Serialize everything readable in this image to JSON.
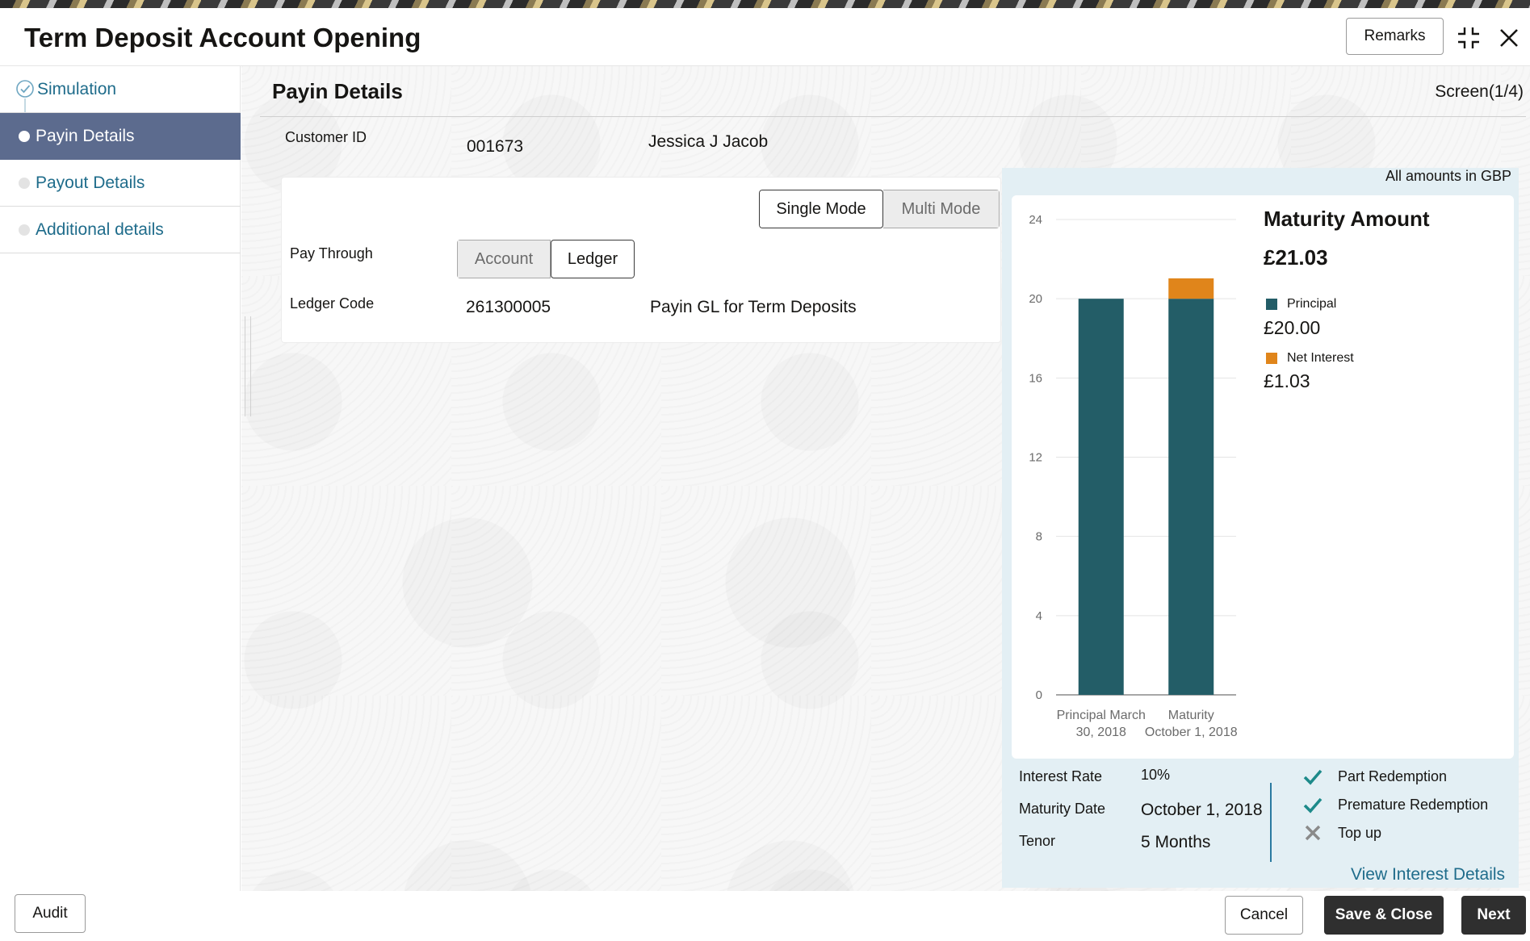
{
  "header": {
    "title": "Term Deposit Account Opening",
    "remarks_label": "Remarks"
  },
  "sidebar": {
    "items": [
      {
        "label": "Simulation",
        "state": "completed"
      },
      {
        "label": "Payin Details",
        "state": "active"
      },
      {
        "label": "Payout Details",
        "state": "pending"
      },
      {
        "label": "Additional details",
        "state": "pending"
      }
    ]
  },
  "main": {
    "section_title": "Payin Details",
    "screen_counter": "Screen(1/4)",
    "customer": {
      "label": "Customer ID",
      "id": "001673",
      "name": "Jessica J Jacob"
    },
    "mode": {
      "options": [
        "Single Mode",
        "Multi Mode"
      ],
      "selected": "Single Mode"
    },
    "pay_through": {
      "label": "Pay Through",
      "options": [
        "Account",
        "Ledger"
      ],
      "selected": "Ledger"
    },
    "ledger": {
      "label": "Ledger Code",
      "code": "261300005",
      "description": "Payin GL for Term Deposits"
    }
  },
  "summary": {
    "currency_note": "All amounts in GBP",
    "maturity_title": "Maturity Amount",
    "maturity_amount": "£21.03",
    "legend": [
      {
        "label": "Principal",
        "value": "£20.00",
        "color": "#235d67"
      },
      {
        "label": "Net Interest",
        "value": "£1.03",
        "color": "#e0851b"
      }
    ],
    "details": [
      {
        "label": "Interest Rate",
        "value": "10%"
      },
      {
        "label": "Maturity Date",
        "value": "October 1, 2018"
      },
      {
        "label": "Tenor",
        "value": "5 Months"
      }
    ],
    "features": [
      {
        "label": "Part Redemption",
        "enabled": true
      },
      {
        "label": "Premature Redemption",
        "enabled": true
      },
      {
        "label": "Top up",
        "enabled": false
      }
    ],
    "link_label": "View Interest Details"
  },
  "chart_data": {
    "type": "bar",
    "stacked": true,
    "categories": [
      "Principal March 30, 2018",
      "Maturity October 1, 2018"
    ],
    "category_lines": [
      [
        "Principal March",
        "30, 2018"
      ],
      [
        "Maturity",
        "October 1, 2018"
      ]
    ],
    "series": [
      {
        "name": "Principal",
        "values": [
          20,
          20
        ],
        "color": "#235d67"
      },
      {
        "name": "Net Interest",
        "values": [
          0,
          1.03
        ],
        "color": "#e0851b"
      }
    ],
    "ylim": [
      0,
      24
    ],
    "yticks": [
      0,
      4,
      8,
      12,
      16,
      20,
      24
    ],
    "grid": true
  },
  "footer": {
    "audit_label": "Audit",
    "cancel_label": "Cancel",
    "save_close_label": "Save & Close",
    "next_label": "Next"
  }
}
